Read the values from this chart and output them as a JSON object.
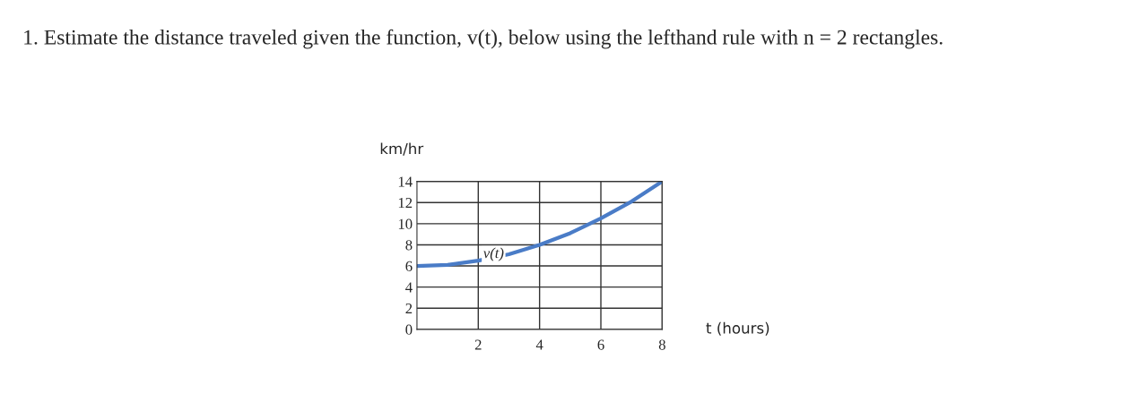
{
  "chart_data": {
    "type": "line",
    "title": "1. Estimate the distance traveled given the function, v(t), below using the lefthand rule with n = 2 rectangles.",
    "xlabel": "t (hours)",
    "ylabel": "km/hr",
    "x": [
      0,
      1,
      2,
      3,
      4,
      5,
      6,
      7,
      8
    ],
    "series": [
      {
        "color": "#4a7cc7",
        "values": [
          6,
          6.1,
          6.5,
          7.1,
          8,
          9.1,
          10.5,
          12.1,
          14
        ]
      }
    ],
    "annotations": [
      {
        "text": "v(t)",
        "x": 3,
        "y": 7.1
      }
    ],
    "xlim": [
      0,
      8
    ],
    "xticks": [
      2,
      4,
      6,
      8
    ],
    "ylim": [
      0,
      14
    ],
    "yticks": [
      0,
      2,
      4,
      6,
      8,
      10,
      12,
      14
    ],
    "grid": true,
    "marker": "none",
    "line_style": "solid"
  }
}
